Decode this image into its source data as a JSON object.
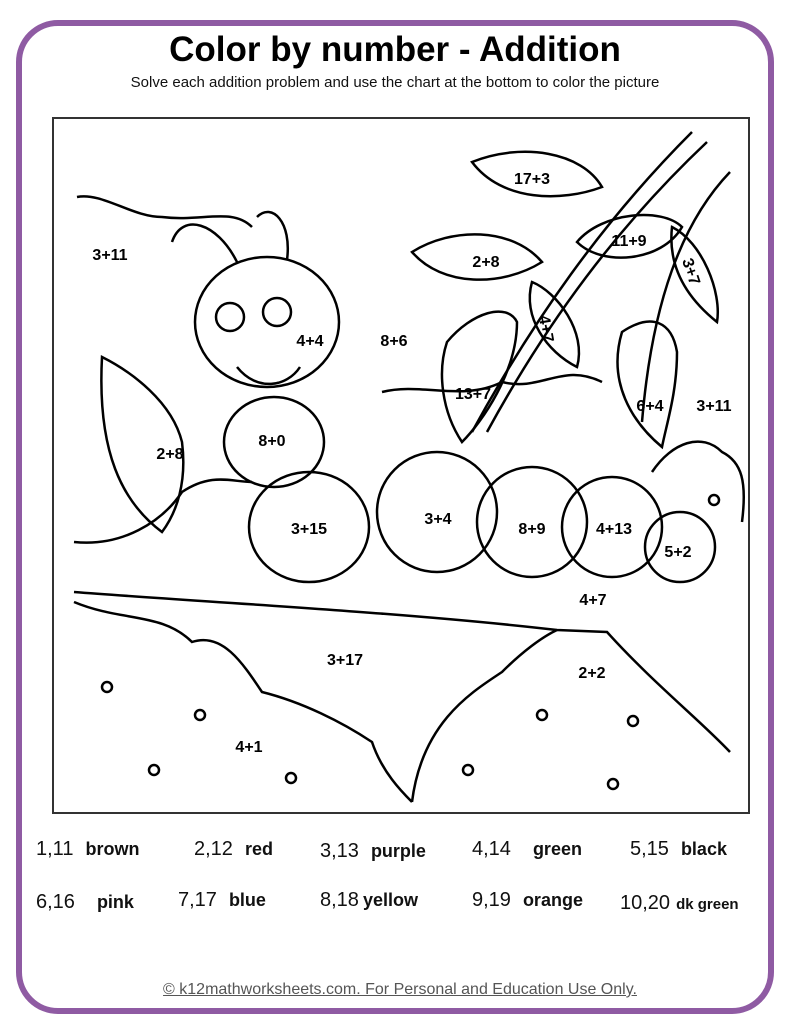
{
  "header": {
    "title": "Color by number - Addition",
    "subtitle": "Solve each addition problem and use the chart at the bottom to color the picture"
  },
  "picture": {
    "labels": [
      "17+3",
      "2+8",
      "11+9",
      "3+7",
      "4+7",
      "3+11",
      "4+4",
      "8+6",
      "13+7",
      "6+4",
      "3+11",
      "2+8",
      "8+0",
      "3+15",
      "3+4",
      "8+9",
      "4+13",
      "5+2",
      "4+7",
      "3+17",
      "2+2",
      "4+1"
    ]
  },
  "legend": [
    {
      "numbers": "1,11",
      "color": "brown"
    },
    {
      "numbers": "2,12",
      "color": "red"
    },
    {
      "numbers": "3,13",
      "color": "purple"
    },
    {
      "numbers": "4,14",
      "color": "green"
    },
    {
      "numbers": "5,15",
      "color": "black"
    },
    {
      "numbers": "6,16",
      "color": "pink"
    },
    {
      "numbers": "7,17",
      "color": "blue"
    },
    {
      "numbers": "8,18",
      "color": "yellow"
    },
    {
      "numbers": "9,19",
      "color": "orange"
    },
    {
      "numbers": "10,20",
      "color": "dk green"
    }
  ],
  "footer": "© k12mathworksheets.com. For Personal and Education Use Only.",
  "colors": {
    "frame": "#8f5ba3"
  }
}
